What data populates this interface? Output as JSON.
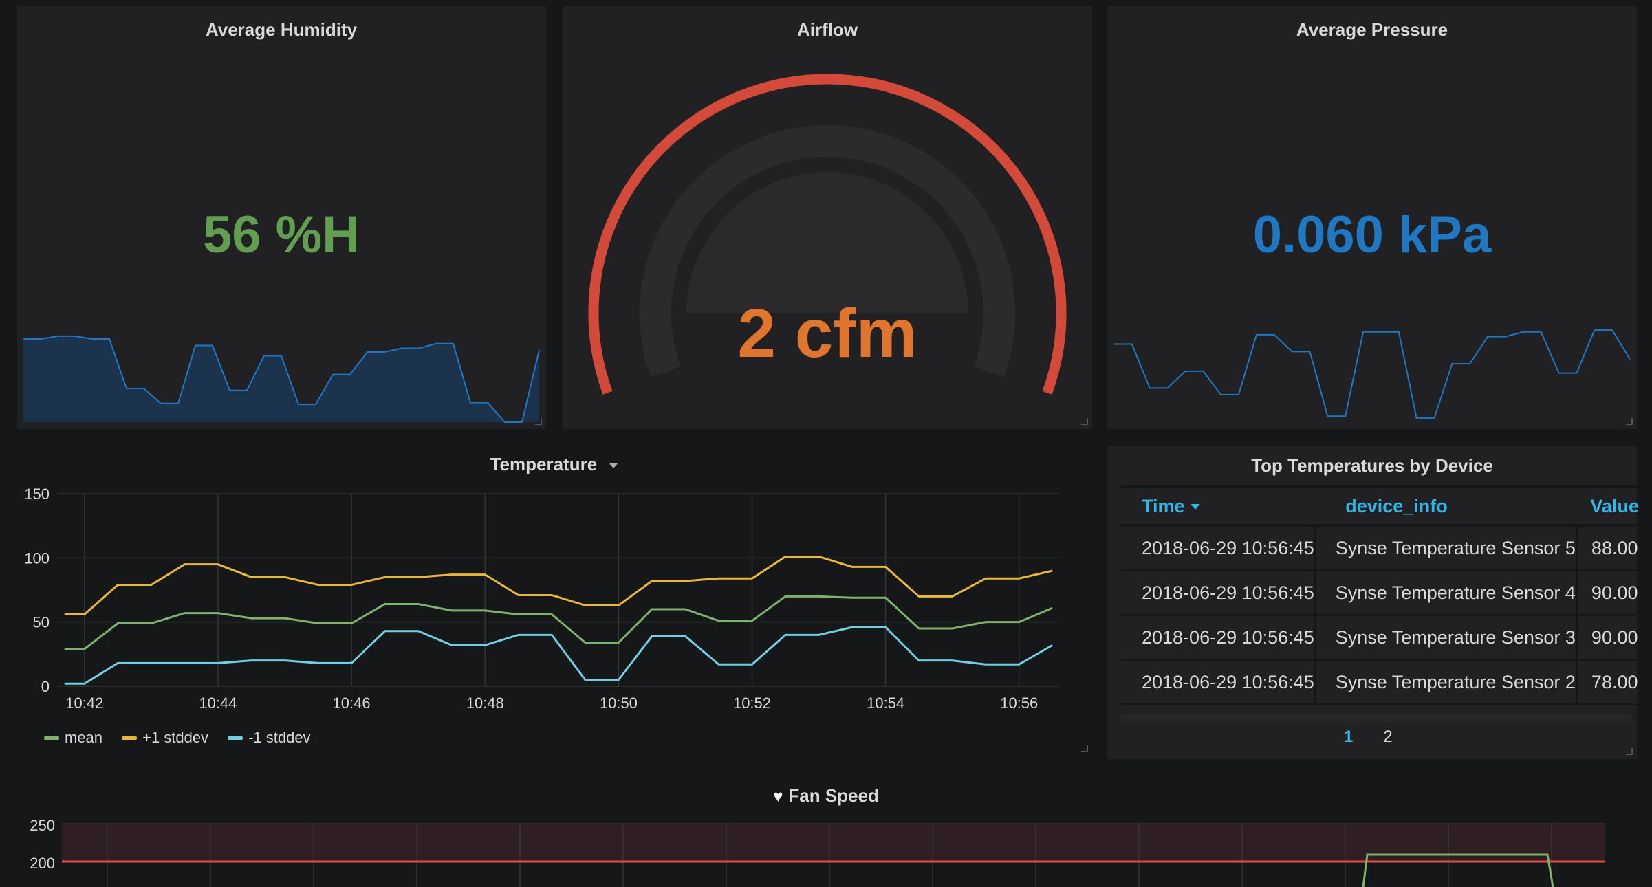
{
  "panels": {
    "humidity": {
      "title": "Average Humidity",
      "value": "56 %H",
      "color": "#629e51",
      "sparkline": [
        0.89,
        0.89,
        0.92,
        0.92,
        0.89,
        0.89,
        0.36,
        0.36,
        0.2,
        0.2,
        0.82,
        0.82,
        0.34,
        0.34,
        0.71,
        0.71,
        0.19,
        0.19,
        0.51,
        0.51,
        0.75,
        0.75,
        0.79,
        0.79,
        0.84,
        0.84,
        0.21,
        0.21,
        0.0,
        0.0,
        0.77
      ]
    },
    "airflow": {
      "title": "Airflow",
      "value": "2 cfm",
      "color": "#d44a3a",
      "value_color": "#e0752d",
      "level": 0.04
    },
    "pressure": {
      "title": "Average Pressure",
      "value": "0.060 kPa",
      "color": "#1f78c1",
      "sparkline": [
        0.82,
        0.82,
        0.35,
        0.35,
        0.53,
        0.53,
        0.28,
        0.28,
        0.92,
        0.92,
        0.74,
        0.74,
        0.05,
        0.05,
        0.95,
        0.95,
        0.95,
        0.03,
        0.03,
        0.61,
        0.61,
        0.9,
        0.9,
        0.95,
        0.95,
        0.51,
        0.51,
        0.97,
        0.97,
        0.66
      ]
    },
    "temperature": {
      "title": "Temperature",
      "legend": [
        "mean",
        "+1 stddev",
        "-1 stddev"
      ]
    },
    "top_temps": {
      "title": "Top Temperatures by Device",
      "columns": [
        "Time",
        "device_info",
        "Value"
      ],
      "rows": [
        [
          "2018-06-29 10:56:45",
          "Synse Temperature Sensor 5",
          "88.00"
        ],
        [
          "2018-06-29 10:56:45",
          "Synse Temperature Sensor 4",
          "90.00"
        ],
        [
          "2018-06-29 10:56:45",
          "Synse Temperature Sensor 3",
          "90.00"
        ],
        [
          "2018-06-29 10:56:45",
          "Synse Temperature Sensor 2",
          "78.00"
        ]
      ],
      "pages": [
        "1",
        "2"
      ]
    },
    "fan_speed": {
      "title": "Fan Speed",
      "y_ticks": [
        "250",
        "200"
      ]
    }
  },
  "chart_data": {
    "type": "line",
    "title": "Temperature",
    "x": [
      "10:42",
      "10:42",
      "10:42.5",
      "10:43",
      "10:43.5",
      "10:44",
      "10:44.5",
      "10:45",
      "10:45.5",
      "10:46",
      "10:46.5",
      "10:47",
      "10:47.5",
      "10:48",
      "10:48.5",
      "10:49",
      "10:49.5",
      "10:50",
      "10:50.5",
      "10:51",
      "10:51.5",
      "10:52",
      "10:52.5",
      "10:53",
      "10:53.5",
      "10:54",
      "10:54.5",
      "10:55",
      "10:55.5",
      "10:56",
      "10:56.5"
    ],
    "x_minutes": [
      41.7,
      42,
      42.5,
      43,
      43.5,
      44,
      44.5,
      45,
      45.5,
      46,
      46.5,
      47,
      47.5,
      48,
      48.5,
      49,
      49.5,
      50,
      50.5,
      51,
      51.5,
      52,
      52.5,
      53,
      53.5,
      54,
      54.5,
      55,
      55.5,
      56,
      56.5
    ],
    "series": [
      {
        "name": "mean",
        "color": "#7eb26d",
        "values": [
          29,
          29,
          49,
          49,
          57,
          57,
          53,
          53,
          49,
          49,
          64,
          64,
          59,
          59,
          56,
          56,
          34,
          34,
          60,
          60,
          51,
          51,
          70,
          70,
          69,
          69,
          45,
          45,
          50,
          50,
          61
        ]
      },
      {
        "name": "+1 stddev",
        "color": "#eab839",
        "values": [
          56,
          56,
          79,
          79,
          95,
          95,
          85,
          85,
          79,
          79,
          85,
          85,
          87,
          87,
          71,
          71,
          63,
          63,
          82,
          82,
          84,
          84,
          101,
          101,
          93,
          93,
          70,
          70,
          84,
          84,
          90
        ]
      },
      {
        "name": "-1 stddev",
        "color": "#6ed0e0",
        "values": [
          2,
          2,
          18,
          18,
          18,
          18,
          20,
          20,
          18,
          18,
          43,
          43,
          32,
          32,
          40,
          40,
          5,
          5,
          39,
          39,
          17,
          17,
          40,
          40,
          46,
          46,
          20,
          20,
          17,
          17,
          32
        ]
      }
    ],
    "x_tick_labels": [
      "10:42",
      "10:44",
      "10:46",
      "10:48",
      "10:50",
      "10:52",
      "10:54",
      "10:56"
    ],
    "y_tick_labels": [
      "150",
      "100",
      "50",
      "0"
    ],
    "ylim": [
      0,
      150
    ],
    "grid": true,
    "legend_position": "bottom-left"
  }
}
